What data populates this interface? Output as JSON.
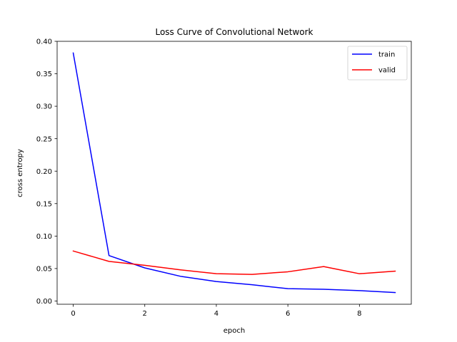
{
  "chart_data": {
    "type": "line",
    "title": "Loss Curve of Convolutional Network",
    "xlabel": "epoch",
    "ylabel": "cross entropy",
    "x": [
      0,
      1,
      2,
      3,
      4,
      5,
      6,
      7,
      8,
      9
    ],
    "xlim": [
      -0.45,
      9.45
    ],
    "ylim": [
      -0.005,
      0.4
    ],
    "xticks": [
      0,
      2,
      4,
      6,
      8
    ],
    "xtick_labels": [
      "0",
      "2",
      "4",
      "6",
      "8"
    ],
    "yticks": [
      0.0,
      0.05,
      0.1,
      0.15,
      0.2,
      0.25,
      0.3,
      0.35,
      0.4
    ],
    "ytick_labels": [
      "0.00",
      "0.05",
      "0.10",
      "0.15",
      "0.20",
      "0.25",
      "0.30",
      "0.35",
      "0.40"
    ],
    "grid": false,
    "legend_position": "top-right",
    "series": [
      {
        "name": "train",
        "color": "#0000ff",
        "values": [
          0.382,
          0.07,
          0.051,
          0.038,
          0.03,
          0.025,
          0.019,
          0.018,
          0.016,
          0.013
        ]
      },
      {
        "name": "valid",
        "color": "#ff0000",
        "values": [
          0.077,
          0.061,
          0.055,
          0.048,
          0.042,
          0.041,
          0.045,
          0.053,
          0.042,
          0.046
        ]
      }
    ]
  }
}
